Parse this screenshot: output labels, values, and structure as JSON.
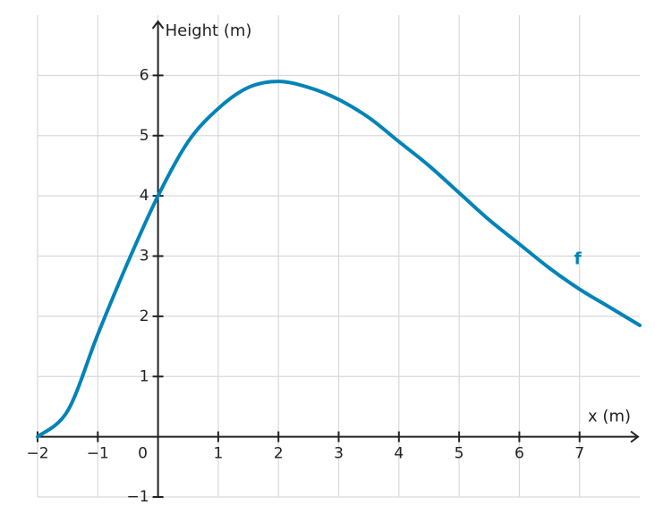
{
  "chart_data": {
    "type": "line",
    "x_label": "x (m)",
    "y_label": "Height (m)",
    "x": [
      -2,
      -1.5,
      -1,
      -0.5,
      0,
      0.5,
      1,
      1.5,
      2,
      2.5,
      3,
      3.5,
      4,
      4.5,
      5,
      5.5,
      6,
      6.5,
      7,
      7.5,
      8
    ],
    "series": [
      {
        "name": "f",
        "color": "#0083b8",
        "values": [
          0,
          0.43,
          1.7,
          2.9,
          4,
          4.9,
          5.45,
          5.8,
          5.9,
          5.8,
          5.6,
          5.3,
          4.9,
          4.5,
          4.05,
          3.6,
          3.2,
          2.8,
          2.45,
          2.15,
          1.85
        ]
      }
    ],
    "xlim": [
      -2,
      8
    ],
    "ylim": [
      -1,
      7
    ],
    "xticks": [
      {
        "value": -2,
        "label": "−2"
      },
      {
        "value": -1,
        "label": "−1"
      },
      0,
      1,
      2,
      3,
      4,
      5,
      6,
      7
    ],
    "yticks": [
      {
        "value": -1,
        "label": "−1"
      },
      1,
      2,
      3,
      4,
      5,
      6
    ],
    "grid": true
  }
}
